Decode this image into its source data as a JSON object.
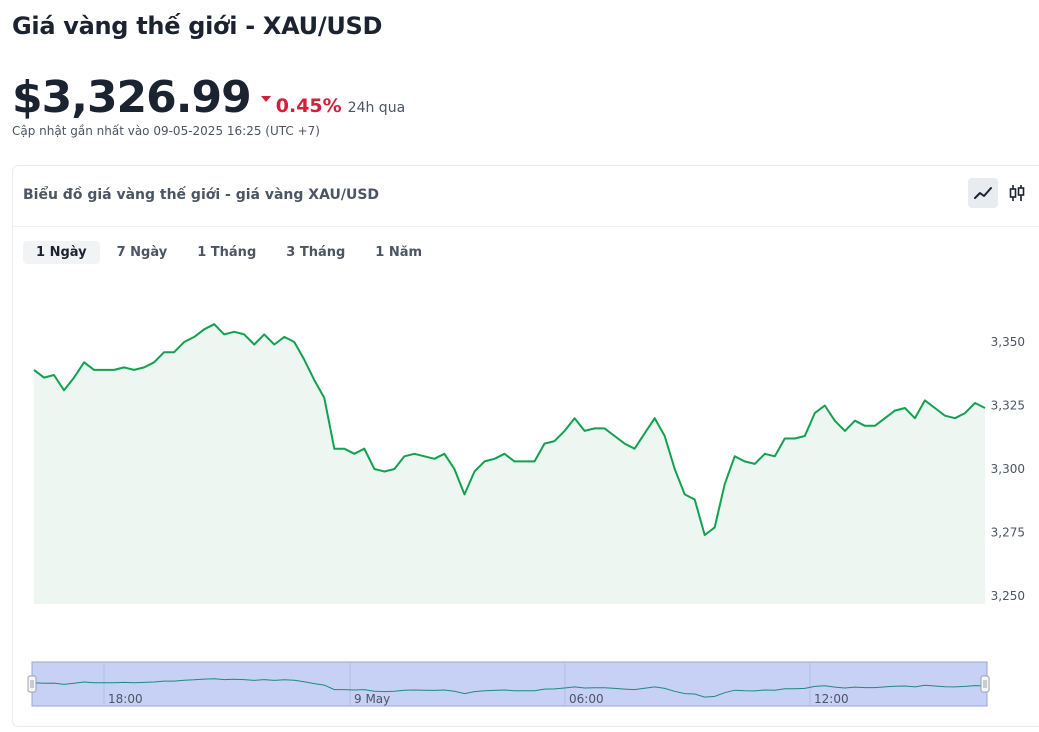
{
  "header": {
    "title": "Giá vàng thế giới - XAU/USD",
    "price": "$3,326.99",
    "change": "0.45%",
    "change_period": "24h qua",
    "updated": "Cập nhật gần nhất vào 09-05-2025 16:25 (UTC +7)"
  },
  "colors": {
    "line": "#12a150",
    "area": "#edf6f0",
    "down": "#d0203a",
    "navigator": "#c7d0f5"
  },
  "chart_panel": {
    "title": "Biểu đồ giá vàng thế giới - giá vàng XAU/USD",
    "chart_type_buttons": [
      {
        "icon": "line-chart-icon",
        "active": true
      },
      {
        "icon": "candlestick-icon",
        "active": false
      }
    ],
    "tabs": [
      {
        "label": "1 Ngày",
        "active": true
      },
      {
        "label": "7 Ngày",
        "active": false
      },
      {
        "label": "1 Tháng",
        "active": false
      },
      {
        "label": "3 Tháng",
        "active": false
      },
      {
        "label": "1 Năm",
        "active": false
      }
    ],
    "navigator_labels": [
      "18:00",
      "9 May",
      "06:00",
      "12:00"
    ]
  },
  "chart_data": {
    "type": "area",
    "ylim": [
      3250,
      3360
    ],
    "yticks": [
      "3,250",
      "3,275",
      "3,300",
      "3,325",
      "3,350"
    ],
    "series": [
      {
        "values": [
          3339,
          3336,
          3337,
          3331,
          3336,
          3342,
          3339,
          3339,
          3339,
          3340,
          3339,
          3340,
          3342,
          3346,
          3346,
          3350,
          3352,
          3355,
          3357,
          3353,
          3354,
          3353,
          3349,
          3353,
          3349,
          3352,
          3350,
          3343,
          3335,
          3328,
          3308,
          3308,
          3306,
          3308,
          3300,
          3299,
          3300,
          3305,
          3306,
          3305,
          3304,
          3306,
          3300,
          3290,
          3299,
          3303,
          3304,
          3306,
          3303,
          3303,
          3303,
          3310,
          3311,
          3315,
          3320,
          3315,
          3316,
          3316,
          3313,
          3310,
          3308,
          3314,
          3320,
          3313,
          3300,
          3290,
          3288,
          3274,
          3277,
          3294,
          3305,
          3303,
          3302,
          3306,
          3305,
          3312,
          3312,
          3313,
          3322,
          3325,
          3319,
          3315,
          3319,
          3317,
          3317,
          3320,
          3323,
          3324,
          3320,
          3327,
          3324,
          3321,
          3320,
          3322,
          3326,
          3324
        ]
      }
    ]
  }
}
